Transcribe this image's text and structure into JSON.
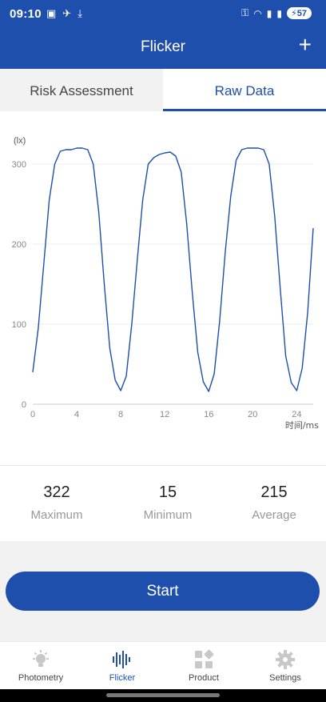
{
  "status_bar": {
    "time": "09:10",
    "battery": "57",
    "left_icons": [
      "screenshot-icon",
      "bird-icon",
      "download-icon"
    ],
    "right_icons": [
      "vpn-key-icon",
      "wifi-icon",
      "signal-icon",
      "signal-icon-2"
    ]
  },
  "app_bar": {
    "title": "Flicker",
    "add_label": "+"
  },
  "tabs": [
    {
      "label": "Risk Assessment",
      "selected": false
    },
    {
      "label": "Raw Data",
      "selected": true
    }
  ],
  "colors": {
    "primary": "#1e4fad",
    "line": "#1e4fad",
    "muted": "#999999",
    "background_gray": "#f2f2f2"
  },
  "chart_data": {
    "type": "line",
    "ylabel": "(lx)",
    "xlabel": "时间/ms",
    "x_ticks": [
      "0",
      "4",
      "8",
      "12",
      "16",
      "20",
      "24"
    ],
    "y_ticks": [
      "0",
      "100",
      "200",
      "300"
    ],
    "xlim": [
      0,
      25.5
    ],
    "ylim": [
      0,
      330
    ],
    "grid": true,
    "series": [
      {
        "x": [
          0.0,
          0.5,
          1.0,
          1.5,
          2.0,
          2.5,
          3.0,
          3.5,
          4.0,
          4.5,
          5.0,
          5.5,
          6.0,
          6.5,
          7.0,
          7.5,
          8.0,
          8.5,
          9.0,
          9.5,
          10.0,
          10.5,
          11.0,
          11.5,
          12.0,
          12.5,
          13.0,
          13.5,
          14.0,
          14.5,
          15.0,
          15.5,
          16.0,
          16.5,
          17.0,
          17.5,
          18.0,
          18.5,
          19.0,
          19.5,
          20.0,
          20.5,
          21.0,
          21.5,
          22.0,
          22.5,
          23.0,
          23.5,
          24.0,
          24.5,
          25.0,
          25.5
        ],
        "y": [
          40,
          95,
          175,
          255,
          300,
          316,
          318,
          318,
          320,
          320,
          318,
          300,
          240,
          150,
          70,
          30,
          17,
          35,
          100,
          180,
          255,
          300,
          308,
          312,
          314,
          315,
          310,
          290,
          225,
          140,
          65,
          28,
          16,
          38,
          105,
          190,
          260,
          305,
          318,
          320,
          320,
          320,
          318,
          300,
          235,
          145,
          60,
          27,
          17,
          45,
          115,
          220
        ]
      }
    ]
  },
  "stats": [
    {
      "value": "322",
      "label": "Maximum"
    },
    {
      "value": "15",
      "label": "Minimum"
    },
    {
      "value": "215",
      "label": "Average"
    }
  ],
  "start_label": "Start",
  "bottom_nav": [
    {
      "label": "Photometry",
      "icon": "bulb-icon",
      "active": false
    },
    {
      "label": "Flicker",
      "icon": "waveform-icon",
      "active": true
    },
    {
      "label": "Product",
      "icon": "grid-icon",
      "active": false
    },
    {
      "label": "Settings",
      "icon": "gear-icon",
      "active": false
    }
  ]
}
